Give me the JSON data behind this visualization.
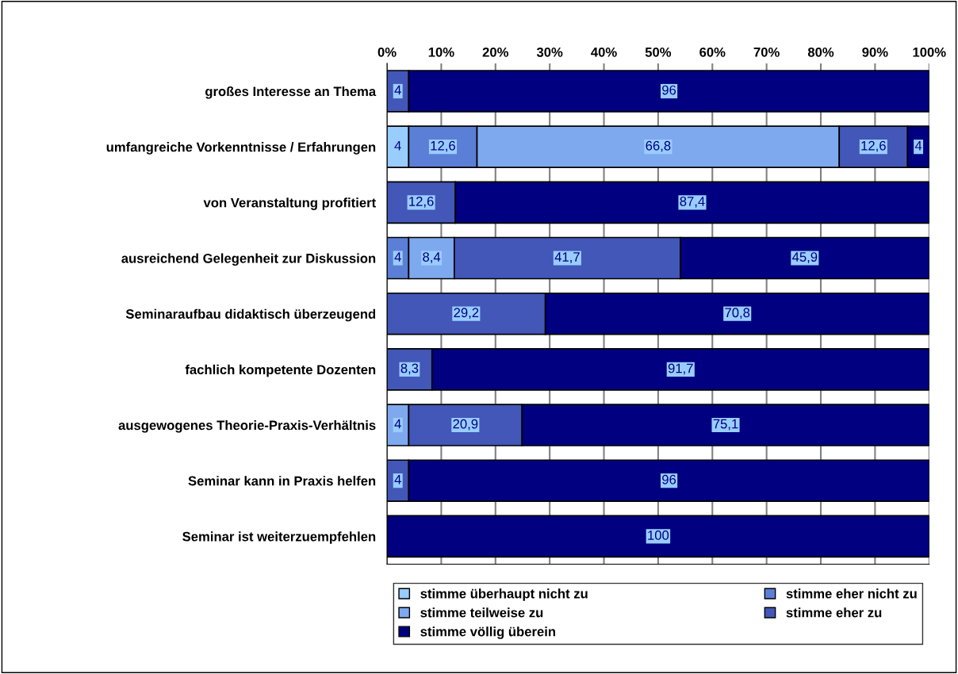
{
  "chart_data": {
    "type": "bar",
    "orientation": "horizontal",
    "stacked": true,
    "categories": [
      "großes Interesse an Thema",
      "umfangreiche Vorkenntnisse / Erfahrungen",
      "von Veranstaltung profitiert",
      "ausreichend Gelegenheit zur Diskussion",
      "Seminaraufbau didaktisch überzeugend",
      "fachlich kompetente Dozenten",
      "ausgewogenes Theorie-Praxis-Verhältnis",
      "Seminar kann in Praxis helfen",
      "Seminar ist weiterzuempfehlen"
    ],
    "series": [
      {
        "name": "stimme überhaupt nicht zu",
        "color": "#99ccff",
        "values": [
          null,
          4,
          null,
          null,
          null,
          null,
          null,
          null,
          null
        ],
        "value_labels": [
          null,
          "4",
          null,
          null,
          null,
          null,
          null,
          null,
          null
        ]
      },
      {
        "name": "stimme eher nicht zu",
        "color": "#5b7fd6",
        "values": [
          null,
          12.6,
          null,
          4,
          null,
          null,
          null,
          null,
          null
        ],
        "value_labels": [
          null,
          "12,6",
          null,
          "4",
          null,
          null,
          null,
          null,
          null
        ]
      },
      {
        "name": "stimme teilweise zu",
        "color": "#7fa9ee",
        "values": [
          null,
          66.8,
          null,
          8.4,
          null,
          null,
          4,
          null,
          null
        ],
        "value_labels": [
          null,
          "66,8",
          null,
          "8,4",
          null,
          null,
          "4",
          null,
          null
        ]
      },
      {
        "name": "stimme eher zu",
        "color": "#4257b8",
        "values": [
          4,
          12.6,
          12.6,
          41.7,
          29.2,
          8.3,
          20.9,
          4,
          null
        ],
        "value_labels": [
          "4",
          "12,6",
          "12,6",
          "41,7",
          "29,2",
          "8,3",
          "20,9",
          "4",
          null
        ]
      },
      {
        "name": "stimme völlig überein",
        "color": "#000080",
        "values": [
          96,
          4,
          87.4,
          45.9,
          70.8,
          91.7,
          75.1,
          96,
          100
        ],
        "value_labels": [
          "96",
          "4",
          "87,4",
          "45,9",
          "70,8",
          "91,7",
          "75,1",
          "96",
          "100"
        ]
      }
    ],
    "xlim": [
      0,
      100
    ],
    "xticks": [
      {
        "value": 0,
        "label": "0%"
      },
      {
        "value": 10,
        "label": "10%"
      },
      {
        "value": 20,
        "label": "20%"
      },
      {
        "value": 30,
        "label": "30%"
      },
      {
        "value": 40,
        "label": "40%"
      },
      {
        "value": 50,
        "label": "50%"
      },
      {
        "value": 60,
        "label": "60%"
      },
      {
        "value": 70,
        "label": "70%"
      },
      {
        "value": 80,
        "label": "80%"
      },
      {
        "value": 90,
        "label": "90%"
      },
      {
        "value": 100,
        "label": "100%"
      }
    ],
    "grid": "x",
    "legend": "bottom"
  }
}
